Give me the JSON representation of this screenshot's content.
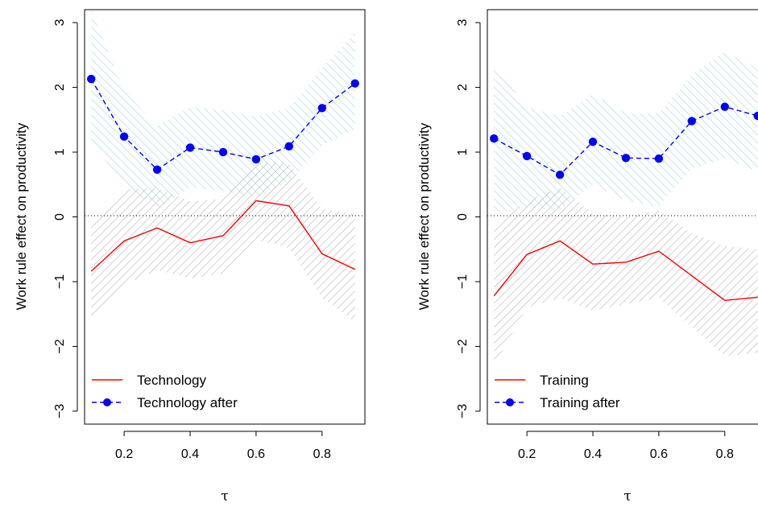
{
  "chart_data": [
    {
      "type": "line",
      "xlabel": "τ",
      "ylabel": "Work rule effect on productivity",
      "xlim": [
        0.08,
        0.93
      ],
      "ylim": [
        -3.2,
        3.2
      ],
      "x_ticks": [
        "0.2",
        "0.4",
        "0.6",
        "0.8"
      ],
      "x_tick_values": [
        0.2,
        0.4,
        0.6,
        0.8
      ],
      "y_ticks": [
        "3",
        "2",
        "1",
        "0",
        "−1",
        "−2",
        "−3"
      ],
      "y_tick_values": [
        3,
        2,
        1,
        0,
        -1,
        -2,
        -3
      ],
      "reference_line": 0,
      "legend_position": "bottom-left",
      "x": [
        0.1,
        0.2,
        0.3,
        0.4,
        0.5,
        0.6,
        0.7,
        0.8,
        0.9
      ],
      "series": [
        {
          "name": "Technology",
          "style": "solid",
          "color": "#ff0000",
          "values": [
            -0.84,
            -0.37,
            -0.17,
            -0.4,
            -0.29,
            0.25,
            0.17,
            -0.57,
            -0.81
          ],
          "band_color": "#bebebe",
          "band_lower": [
            -1.55,
            -1.05,
            -0.82,
            -0.95,
            -0.88,
            -0.35,
            -0.48,
            -1.25,
            -1.62
          ],
          "band_upper": [
            -0.12,
            0.42,
            0.45,
            0.24,
            0.28,
            0.84,
            0.82,
            0.12,
            0.05
          ]
        },
        {
          "name": "Technology after",
          "style": "dashed-points",
          "color": "#0000ff",
          "values": [
            2.13,
            1.24,
            0.73,
            1.07,
            1.0,
            0.89,
            1.09,
            1.68,
            2.06
          ],
          "band_color": "#9fd5dc",
          "band_lower": [
            1.15,
            0.5,
            0.12,
            0.45,
            0.4,
            0.3,
            0.55,
            1.1,
            1.35
          ],
          "band_upper": [
            3.2,
            1.95,
            1.4,
            1.7,
            1.65,
            1.55,
            1.68,
            2.3,
            2.85
          ]
        }
      ]
    },
    {
      "type": "line",
      "xlabel": "τ",
      "ylabel": "Work rule effect on productivity",
      "xlim": [
        0.08,
        0.93
      ],
      "ylim": [
        -3.2,
        3.2
      ],
      "x_ticks": [
        "0.2",
        "0.4",
        "0.6",
        "0.8"
      ],
      "x_tick_values": [
        0.2,
        0.4,
        0.6,
        0.8
      ],
      "y_ticks": [
        "3",
        "2",
        "1",
        "0",
        "−1",
        "−2",
        "−3"
      ],
      "y_tick_values": [
        3,
        2,
        1,
        0,
        -1,
        -2,
        -3
      ],
      "reference_line": 0,
      "legend_position": "bottom-left",
      "x": [
        0.1,
        0.2,
        0.3,
        0.4,
        0.5,
        0.6,
        0.7,
        0.8,
        0.9
      ],
      "series": [
        {
          "name": "Training",
          "style": "solid",
          "color": "#ff0000",
          "values": [
            -1.22,
            -0.58,
            -0.37,
            -0.73,
            -0.7,
            -0.53,
            -0.91,
            -1.29,
            -1.24
          ],
          "band_color": "#bebebe",
          "band_lower": [
            -2.3,
            -1.4,
            -1.25,
            -1.45,
            -1.35,
            -1.25,
            -1.7,
            -2.15,
            -2.1
          ],
          "band_upper": [
            -0.15,
            0.25,
            0.45,
            0.05,
            0.0,
            0.1,
            -0.25,
            -0.45,
            -0.5
          ]
        },
        {
          "name": "Training after",
          "style": "dashed-points",
          "color": "#0000ff",
          "values": [
            1.21,
            0.94,
            0.65,
            1.16,
            0.91,
            0.9,
            1.48,
            1.7,
            1.56
          ],
          "band_color": "#9fd5dc",
          "band_lower": [
            0.05,
            0.15,
            0.1,
            0.5,
            0.25,
            0.15,
            0.75,
            0.9,
            0.7
          ],
          "band_upper": [
            2.35,
            1.7,
            1.55,
            1.9,
            1.6,
            1.6,
            2.2,
            2.55,
            2.3
          ]
        }
      ]
    }
  ]
}
